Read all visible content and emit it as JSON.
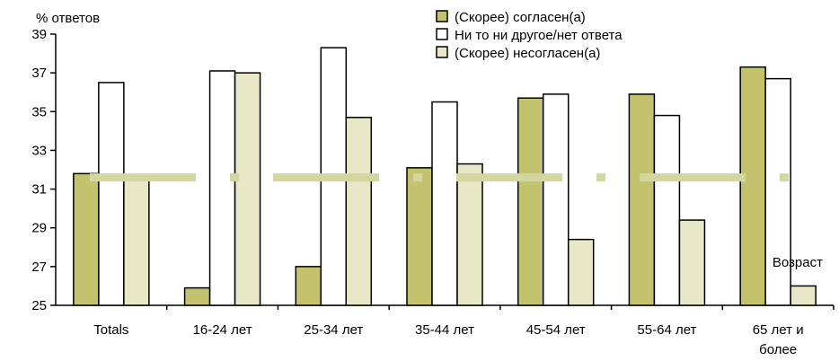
{
  "chart_data": {
    "type": "bar",
    "ylabel": "% ответов",
    "xlabel": "Возраст",
    "ylim": [
      25,
      39
    ],
    "yticks": [
      25,
      27,
      29,
      31,
      33,
      35,
      37,
      39
    ],
    "categories": [
      [
        "Totals"
      ],
      [
        "16-24 лет"
      ],
      [
        "25-34 лет"
      ],
      [
        "35-44 лет"
      ],
      [
        "45-54 лет"
      ],
      [
        "55-64 лет"
      ],
      [
        "65 лет и",
        "более"
      ]
    ],
    "series": [
      {
        "name": "(Скорее) согласен(а)",
        "color": "#c3c36f",
        "values": [
          31.8,
          25.9,
          27.0,
          32.1,
          35.7,
          35.9,
          37.3
        ]
      },
      {
        "name": "Ни то ни другое/нет ответа",
        "color": "#ffffff",
        "values": [
          36.5,
          37.1,
          38.3,
          35.5,
          35.9,
          34.8,
          36.7
        ]
      },
      {
        "name": "(Скорее) несогласен(а)",
        "color": "#e8e8c8",
        "values": [
          31.6,
          37.0,
          34.7,
          32.3,
          28.4,
          29.4,
          26.0
        ]
      }
    ],
    "reference_line": {
      "value": 31.6,
      "style": "dashed",
      "color": "#d4d6a0"
    },
    "legend": "top-right",
    "grid": false
  }
}
